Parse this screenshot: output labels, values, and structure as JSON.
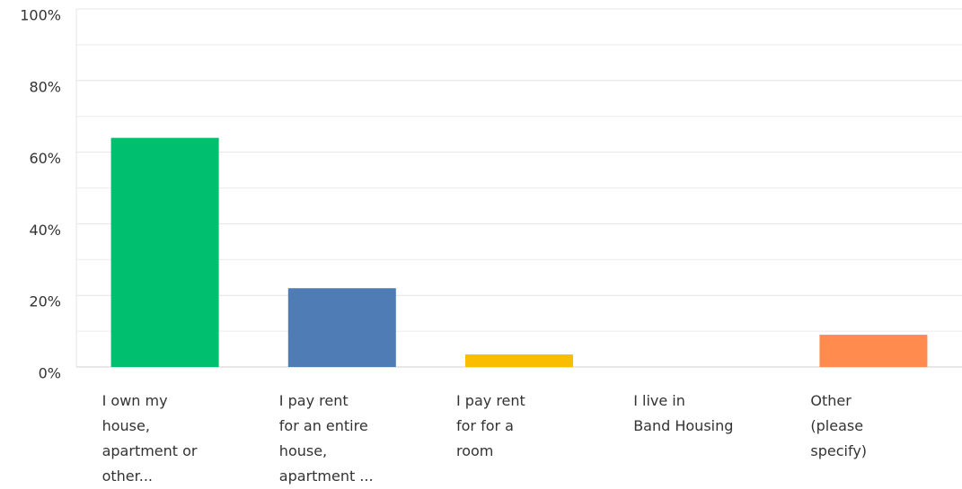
{
  "chart_data": {
    "type": "bar",
    "categories": [
      [
        "I own my",
        "house,",
        "apartment or",
        "other..."
      ],
      [
        "I pay rent",
        "for an entire",
        "house,",
        "apartment ..."
      ],
      [
        "I pay rent",
        "for for a",
        "room"
      ],
      [
        "I live in",
        "Band Housing"
      ],
      [
        "Other",
        "(please",
        "specify)"
      ]
    ],
    "values": [
      64,
      22,
      3.5,
      0,
      9
    ],
    "colors": [
      "#00bf6f",
      "#507cb6",
      "#f9be00",
      "#6bc8cd",
      "#ff8b4f"
    ],
    "ylim": [
      0,
      100
    ],
    "yticks": [
      {
        "value": 0,
        "label": "0%"
      },
      {
        "value": 20,
        "label": "20%"
      },
      {
        "value": 40,
        "label": "40%"
      },
      {
        "value": 60,
        "label": "60%"
      },
      {
        "value": 80,
        "label": "80%"
      },
      {
        "value": 100,
        "label": "100%"
      }
    ],
    "minor_yticks": [
      10,
      30,
      50,
      70,
      90
    ],
    "grid": true
  }
}
